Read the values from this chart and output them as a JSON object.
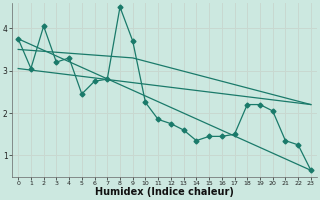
{
  "title": "",
  "xlabel": "Humidex (Indice chaleur)",
  "ylabel": "",
  "bg_color": "#cce8e0",
  "grid_color": "#bbcccc",
  "line_color": "#1a7a6a",
  "marker": "D",
  "marker_size": 2.5,
  "xlim": [
    -0.5,
    23.5
  ],
  "ylim": [
    0.5,
    4.6
  ],
  "yticks": [
    1,
    2,
    3,
    4
  ],
  "xticks": [
    0,
    1,
    2,
    3,
    4,
    5,
    6,
    7,
    8,
    9,
    10,
    11,
    12,
    13,
    14,
    15,
    16,
    17,
    18,
    19,
    20,
    21,
    22,
    23
  ],
  "series1_x": [
    0,
    1,
    2,
    3,
    4,
    5,
    6,
    7,
    8,
    9,
    10,
    11,
    12,
    13,
    14,
    15,
    16,
    17,
    18,
    19,
    20,
    21,
    22,
    23
  ],
  "series1_y": [
    3.75,
    3.05,
    4.05,
    3.2,
    3.3,
    2.45,
    2.75,
    2.8,
    4.5,
    3.7,
    2.25,
    1.85,
    1.75,
    1.6,
    1.35,
    1.45,
    1.45,
    1.5,
    2.2,
    2.2,
    2.05,
    1.35,
    1.25,
    0.65
  ],
  "series2_x": [
    0,
    23
  ],
  "series2_y": [
    3.75,
    0.65
  ],
  "series3_x": [
    0,
    9,
    23
  ],
  "series3_y": [
    3.5,
    3.3,
    2.2
  ],
  "series4_x": [
    0,
    23
  ],
  "series4_y": [
    3.05,
    2.2
  ]
}
